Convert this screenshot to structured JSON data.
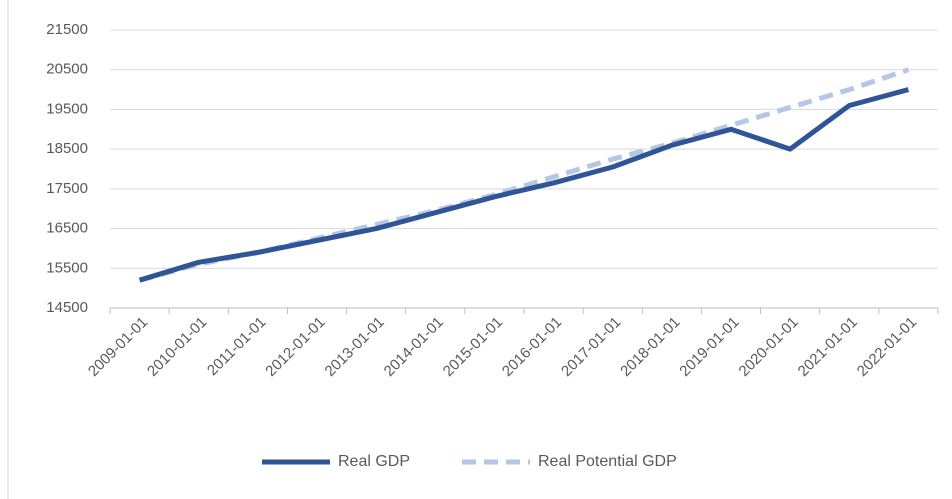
{
  "chart_data": {
    "type": "line",
    "categories": [
      "2009-01-01",
      "2010-01-01",
      "2011-01-01",
      "2012-01-01",
      "2013-01-01",
      "2014-01-01",
      "2015-01-01",
      "2016-01-01",
      "2017-01-01",
      "2018-01-01",
      "2019-01-01",
      "2020-01-01",
      "2021-01-01",
      "2022-01-01"
    ],
    "series": [
      {
        "name": "Real GDP",
        "color": "#2f5597",
        "dashed": false,
        "values": [
          15200,
          15650,
          15900,
          16200,
          16500,
          16900,
          17300,
          17650,
          18050,
          18600,
          19000,
          18500,
          19600,
          20000
        ]
      },
      {
        "name": "Real Potential GDP",
        "color": "#b4c7e7",
        "dashed": true,
        "values": [
          15200,
          15600,
          15900,
          16250,
          16600,
          16950,
          17350,
          17800,
          18250,
          18650,
          19100,
          19550,
          20000,
          20500
        ]
      }
    ],
    "ylim": [
      14500,
      21500
    ],
    "yticks": [
      14500,
      15500,
      16500,
      17500,
      18500,
      19500,
      20500,
      21500
    ],
    "grid": true,
    "legend": "bottom"
  }
}
